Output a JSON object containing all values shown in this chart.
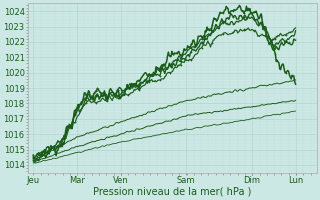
{
  "bg_color": "#cce8e4",
  "grid_major_color": "#b0d4d0",
  "grid_minor_color": "#c4e0dc",
  "line_color": "#1a5c1a",
  "ylim": [
    1013.5,
    1024.5
  ],
  "ylabel_ticks": [
    1014,
    1015,
    1016,
    1017,
    1018,
    1019,
    1020,
    1021,
    1022,
    1023,
    1024
  ],
  "xlabel": "Pression niveau de la mer( hPa )",
  "x_day_labels": [
    "Jeu",
    "Mar",
    "Ven",
    "Sam",
    "Dim",
    "Lun"
  ],
  "x_day_positions": [
    0,
    0.167,
    0.333,
    0.583,
    0.833,
    1.0
  ],
  "xlim": [
    -0.02,
    1.08
  ],
  "label_fontsize": 7,
  "tick_fontsize": 6,
  "lines": [
    {
      "waypoints_x": [
        0.0,
        0.1,
        0.2,
        0.333,
        0.5,
        0.583,
        0.65,
        0.72,
        0.833,
        0.87,
        0.9,
        0.95,
        1.0
      ],
      "waypoints_y": [
        1014.3,
        1015.2,
        1018.7,
        1018.5,
        1020.8,
        1021.5,
        1022.5,
        1024.0,
        1024.1,
        1023.5,
        1021.8,
        1020.5,
        1019.2
      ],
      "noise": 0.35,
      "lw": 1.1,
      "marker": true
    },
    {
      "waypoints_x": [
        0.0,
        0.1,
        0.2,
        0.333,
        0.5,
        0.583,
        0.65,
        0.72,
        0.833,
        0.87,
        0.92,
        1.0
      ],
      "waypoints_y": [
        1014.5,
        1015.5,
        1018.3,
        1018.8,
        1020.3,
        1021.0,
        1022.0,
        1023.5,
        1023.8,
        1023.2,
        1021.5,
        1022.0
      ],
      "noise": 0.25,
      "lw": 1.0,
      "marker": true
    },
    {
      "waypoints_x": [
        0.0,
        0.1,
        0.2,
        0.333,
        0.5,
        0.72,
        0.833,
        0.87,
        0.92,
        1.0
      ],
      "waypoints_y": [
        1014.4,
        1015.3,
        1018.5,
        1018.6,
        1020.2,
        1023.2,
        1023.5,
        1023.0,
        1021.8,
        1022.5
      ],
      "noise": 0.18,
      "lw": 0.9,
      "marker": true
    },
    {
      "waypoints_x": [
        0.0,
        0.1,
        0.2,
        0.333,
        0.5,
        0.72,
        0.833,
        0.87,
        0.92,
        1.0
      ],
      "waypoints_y": [
        1014.5,
        1015.2,
        1018.0,
        1018.4,
        1019.8,
        1022.5,
        1022.8,
        1022.5,
        1022.2,
        1022.8
      ],
      "noise": 0.15,
      "lw": 0.85,
      "marker": true
    },
    {
      "waypoints_x": [
        0.0,
        0.167,
        0.333,
        0.583,
        0.833,
        1.0
      ],
      "waypoints_y": [
        1014.3,
        1015.8,
        1016.8,
        1018.2,
        1019.0,
        1019.5
      ],
      "noise": 0.05,
      "lw": 0.7,
      "marker": false
    },
    {
      "waypoints_x": [
        0.0,
        0.167,
        0.333,
        0.583,
        0.833,
        1.0
      ],
      "waypoints_y": [
        1014.2,
        1015.2,
        1016.0,
        1017.2,
        1017.8,
        1018.2
      ],
      "noise": 0.04,
      "lw": 0.7,
      "marker": false
    },
    {
      "waypoints_x": [
        0.0,
        0.167,
        0.333,
        0.583,
        0.833,
        1.0
      ],
      "waypoints_y": [
        1014.1,
        1014.8,
        1015.5,
        1016.3,
        1017.0,
        1017.5
      ],
      "noise": 0.03,
      "lw": 0.6,
      "marker": false
    }
  ]
}
